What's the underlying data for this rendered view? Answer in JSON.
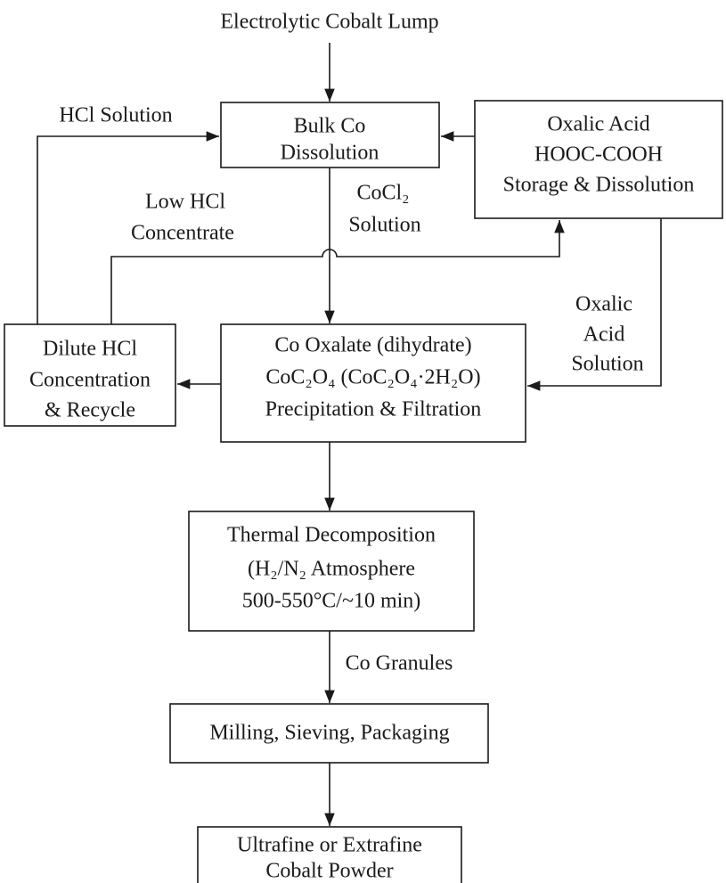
{
  "input": "Electrolytic Cobalt Lump",
  "nodes": [
    {
      "lines": [
        "Bulk Co",
        "Dissolution"
      ]
    },
    {
      "lines": [
        "Oxalic Acid",
        "HOOC-COOH",
        "Storage & Dissolution"
      ]
    },
    {
      "lines": [
        "Dilute HCl",
        "Concentration",
        "& Recycle"
      ]
    },
    {
      "lines": [
        "Co Oxalate (dihydrate)",
        "CoC₂O₄ (CoC₂O₄·2H₂O)",
        "Precipitation & Filtration"
      ]
    },
    {
      "lines": [
        "Thermal Decomposition",
        "(H₂/N₂ Atmosphere",
        "500-550°C/~10 min)"
      ]
    },
    {
      "lines": [
        "Milling, Sieving, Packaging"
      ]
    },
    {
      "lines": [
        "Ultrafine or Extrafine",
        "Cobalt Powder"
      ]
    }
  ],
  "edge_labels": {
    "hcl_solution": [
      "HCl Solution"
    ],
    "low_hcl": [
      "Low HCl",
      "Concentrate"
    ],
    "cocl2": [
      "CoCl₂",
      "Solution"
    ],
    "oxalic_solution": [
      "Oxalic",
      "Acid",
      "Solution"
    ],
    "granules": [
      "Co Granules"
    ]
  }
}
